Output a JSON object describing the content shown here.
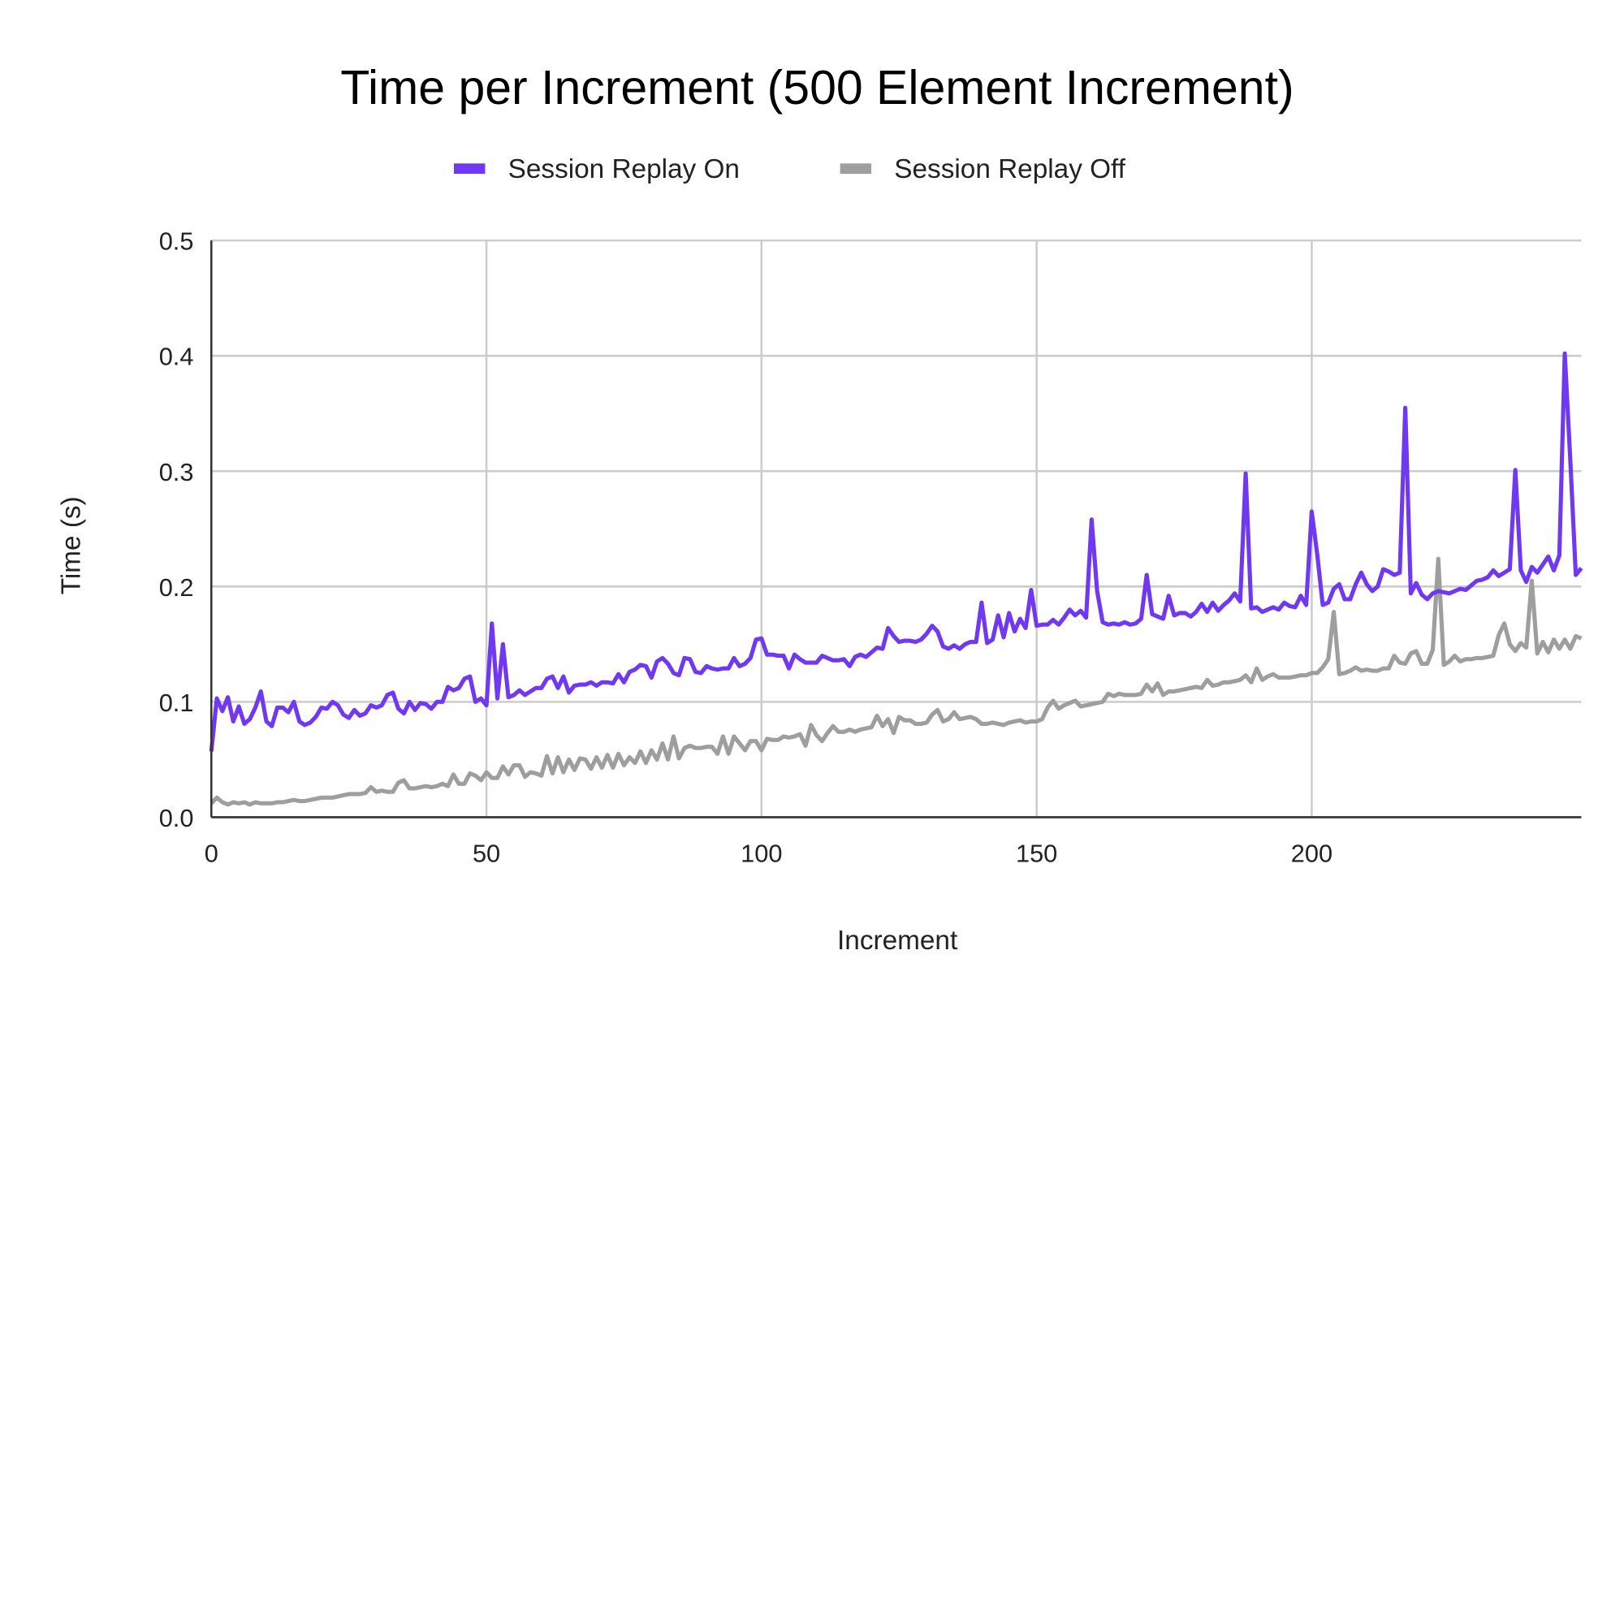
{
  "chart_data": {
    "type": "line",
    "title": "Time per Increment (500 Element Increment)",
    "xlabel": "Increment",
    "ylabel": "Time (s)",
    "xlim": [
      0,
      249
    ],
    "ylim": [
      0,
      0.5
    ],
    "xticks": [
      "0",
      "50",
      "100",
      "150",
      "200"
    ],
    "xtick_values": [
      0,
      50,
      100,
      150,
      200
    ],
    "yticks": [
      "0.0",
      "0.1",
      "0.2",
      "0.3",
      "0.4",
      "0.5"
    ],
    "ytick_values": [
      0,
      0.1,
      0.2,
      0.3,
      0.4,
      0.5
    ],
    "grid": true,
    "legend_position": "top",
    "series": [
      {
        "name": "Session Replay On",
        "color": "#7038f0",
        "values": [
          0.057,
          0.103,
          0.092,
          0.104,
          0.083,
          0.096,
          0.081,
          0.085,
          0.095,
          0.109,
          0.083,
          0.079,
          0.095,
          0.095,
          0.091,
          0.1,
          0.083,
          0.08,
          0.082,
          0.087,
          0.095,
          0.094,
          0.1,
          0.097,
          0.089,
          0.086,
          0.093,
          0.088,
          0.09,
          0.097,
          0.095,
          0.097,
          0.106,
          0.108,
          0.094,
          0.09,
          0.1,
          0.093,
          0.099,
          0.098,
          0.094,
          0.1,
          0.1,
          0.113,
          0.11,
          0.112,
          0.12,
          0.122,
          0.1,
          0.103,
          0.097,
          0.168,
          0.103,
          0.15,
          0.104,
          0.106,
          0.11,
          0.106,
          0.109,
          0.112,
          0.112,
          0.12,
          0.122,
          0.112,
          0.122,
          0.108,
          0.114,
          0.115,
          0.115,
          0.117,
          0.114,
          0.117,
          0.117,
          0.116,
          0.124,
          0.117,
          0.126,
          0.128,
          0.132,
          0.131,
          0.121,
          0.135,
          0.138,
          0.133,
          0.125,
          0.123,
          0.138,
          0.137,
          0.126,
          0.125,
          0.131,
          0.129,
          0.128,
          0.129,
          0.129,
          0.138,
          0.131,
          0.133,
          0.138,
          0.154,
          0.155,
          0.141,
          0.141,
          0.14,
          0.14,
          0.129,
          0.141,
          0.137,
          0.134,
          0.134,
          0.134,
          0.14,
          0.138,
          0.136,
          0.136,
          0.137,
          0.131,
          0.139,
          0.141,
          0.139,
          0.143,
          0.147,
          0.146,
          0.164,
          0.157,
          0.152,
          0.153,
          0.153,
          0.152,
          0.154,
          0.159,
          0.166,
          0.161,
          0.148,
          0.146,
          0.149,
          0.146,
          0.15,
          0.152,
          0.152,
          0.186,
          0.151,
          0.154,
          0.175,
          0.156,
          0.177,
          0.161,
          0.172,
          0.164,
          0.197,
          0.166,
          0.167,
          0.167,
          0.171,
          0.167,
          0.173,
          0.18,
          0.175,
          0.179,
          0.173,
          0.258,
          0.196,
          0.169,
          0.167,
          0.168,
          0.167,
          0.169,
          0.167,
          0.168,
          0.172,
          0.21,
          0.176,
          0.174,
          0.172,
          0.192,
          0.175,
          0.177,
          0.177,
          0.174,
          0.178,
          0.185,
          0.178,
          0.186,
          0.179,
          0.184,
          0.188,
          0.194,
          0.187,
          0.298,
          0.181,
          0.182,
          0.178,
          0.18,
          0.182,
          0.18,
          0.186,
          0.183,
          0.182,
          0.192,
          0.184,
          0.265,
          0.228,
          0.184,
          0.186,
          0.198,
          0.202,
          0.189,
          0.189,
          0.202,
          0.212,
          0.202,
          0.196,
          0.2,
          0.215,
          0.213,
          0.21,
          0.212,
          0.355,
          0.194,
          0.203,
          0.193,
          0.189,
          0.194,
          0.196,
          0.195,
          0.194,
          0.196,
          0.198,
          0.197,
          0.201,
          0.205,
          0.206,
          0.208,
          0.214,
          0.209,
          0.212,
          0.215,
          0.301,
          0.214,
          0.204,
          0.217,
          0.212,
          0.219,
          0.226,
          0.214,
          0.227,
          0.402,
          0.31,
          0.21,
          0.216
        ]
      },
      {
        "name": "Session Replay Off",
        "color": "#9e9e9e",
        "values": [
          0.012,
          0.017,
          0.013,
          0.011,
          0.013,
          0.012,
          0.013,
          0.011,
          0.013,
          0.012,
          0.012,
          0.012,
          0.013,
          0.013,
          0.014,
          0.015,
          0.014,
          0.014,
          0.015,
          0.016,
          0.017,
          0.017,
          0.017,
          0.018,
          0.019,
          0.02,
          0.02,
          0.02,
          0.021,
          0.026,
          0.022,
          0.023,
          0.022,
          0.022,
          0.03,
          0.032,
          0.025,
          0.025,
          0.026,
          0.027,
          0.026,
          0.027,
          0.029,
          0.027,
          0.037,
          0.029,
          0.029,
          0.038,
          0.036,
          0.032,
          0.039,
          0.034,
          0.034,
          0.044,
          0.037,
          0.045,
          0.045,
          0.035,
          0.039,
          0.038,
          0.036,
          0.053,
          0.038,
          0.052,
          0.039,
          0.05,
          0.041,
          0.051,
          0.05,
          0.042,
          0.052,
          0.043,
          0.054,
          0.043,
          0.055,
          0.045,
          0.052,
          0.047,
          0.057,
          0.047,
          0.058,
          0.05,
          0.064,
          0.05,
          0.07,
          0.051,
          0.06,
          0.062,
          0.06,
          0.06,
          0.061,
          0.061,
          0.055,
          0.07,
          0.055,
          0.07,
          0.064,
          0.058,
          0.066,
          0.066,
          0.058,
          0.068,
          0.067,
          0.067,
          0.07,
          0.069,
          0.07,
          0.072,
          0.062,
          0.08,
          0.071,
          0.066,
          0.073,
          0.079,
          0.074,
          0.074,
          0.076,
          0.074,
          0.076,
          0.077,
          0.078,
          0.088,
          0.079,
          0.085,
          0.073,
          0.087,
          0.084,
          0.084,
          0.081,
          0.081,
          0.082,
          0.089,
          0.093,
          0.083,
          0.085,
          0.091,
          0.085,
          0.086,
          0.087,
          0.085,
          0.081,
          0.081,
          0.082,
          0.081,
          0.08,
          0.082,
          0.083,
          0.084,
          0.082,
          0.083,
          0.083,
          0.085,
          0.095,
          0.101,
          0.094,
          0.097,
          0.099,
          0.101,
          0.096,
          0.097,
          0.098,
          0.099,
          0.1,
          0.107,
          0.105,
          0.107,
          0.106,
          0.106,
          0.106,
          0.107,
          0.115,
          0.109,
          0.116,
          0.106,
          0.109,
          0.109,
          0.11,
          0.111,
          0.112,
          0.113,
          0.112,
          0.119,
          0.114,
          0.115,
          0.117,
          0.117,
          0.118,
          0.119,
          0.123,
          0.117,
          0.129,
          0.119,
          0.122,
          0.124,
          0.121,
          0.121,
          0.121,
          0.122,
          0.123,
          0.123,
          0.125,
          0.125,
          0.13,
          0.137,
          0.178,
          0.124,
          0.125,
          0.127,
          0.13,
          0.127,
          0.128,
          0.127,
          0.127,
          0.129,
          0.129,
          0.14,
          0.134,
          0.133,
          0.142,
          0.144,
          0.133,
          0.133,
          0.145,
          0.224,
          0.132,
          0.135,
          0.14,
          0.135,
          0.137,
          0.137,
          0.138,
          0.138,
          0.139,
          0.14,
          0.158,
          0.168,
          0.15,
          0.144,
          0.151,
          0.147,
          0.205,
          0.142,
          0.152,
          0.143,
          0.154,
          0.146,
          0.154,
          0.146,
          0.157,
          0.155
        ]
      }
    ]
  }
}
